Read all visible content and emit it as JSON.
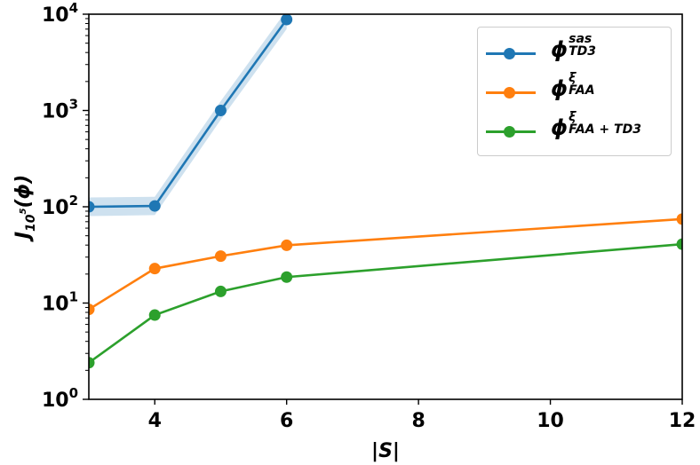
{
  "chart_data": {
    "type": "line",
    "title": "",
    "xlabel": "|S|",
    "ylabel": "J_{10^5}(φ)",
    "yscale": "log",
    "xlim": [
      3,
      12
    ],
    "ylim": [
      1,
      10000
    ],
    "grid": false,
    "legend_position": "upper right",
    "x_ticks": [
      4,
      6,
      8,
      10,
      12
    ],
    "y_ticks": [
      "10^0",
      "10^1",
      "10^2",
      "10^3",
      "10^4"
    ],
    "series": [
      {
        "name": "φ^{sas}_{TD3}",
        "color": "#1f77b4",
        "x": [
          3,
          4,
          5,
          6
        ],
        "values": [
          100,
          102,
          1000,
          8800
        ],
        "band_lower": [
          80,
          82,
          800,
          7000
        ],
        "band_upper": [
          125,
          127,
          1250,
          11000
        ]
      },
      {
        "name": "φ^{ξ}_{FAA}",
        "color": "#ff7f0e",
        "x": [
          3,
          4,
          5,
          6,
          12
        ],
        "values": [
          8.6,
          22.8,
          30.7,
          39.8,
          74.5
        ]
      },
      {
        "name": "φ^{ξ}_{FAA + TD3}",
        "color": "#2ca02c",
        "x": [
          3,
          4,
          5,
          6,
          12
        ],
        "values": [
          2.4,
          7.5,
          13.2,
          18.6,
          40.9
        ]
      }
    ]
  },
  "axes": {
    "xlabel": "|S|",
    "ylabel_main": "J",
    "ylabel_sub": "10",
    "ylabel_subsup": "5",
    "ylabel_arg": "(ϕ)",
    "x_tick_labels": [
      "4",
      "6",
      "8",
      "10",
      "12"
    ],
    "y_tick_base": "10",
    "y_tick_exps": [
      "0",
      "1",
      "2",
      "3",
      "4"
    ]
  },
  "legend": {
    "items": [
      {
        "symbol": "ϕ",
        "sup": "sas",
        "sub": "TD3",
        "color": "#1f77b4"
      },
      {
        "symbol": "ϕ",
        "sup": "ξ",
        "sub": "FAA",
        "color": "#ff7f0e"
      },
      {
        "symbol": "ϕ",
        "sup": "ξ",
        "sub": "FAA + TD3",
        "color": "#2ca02c"
      }
    ]
  }
}
